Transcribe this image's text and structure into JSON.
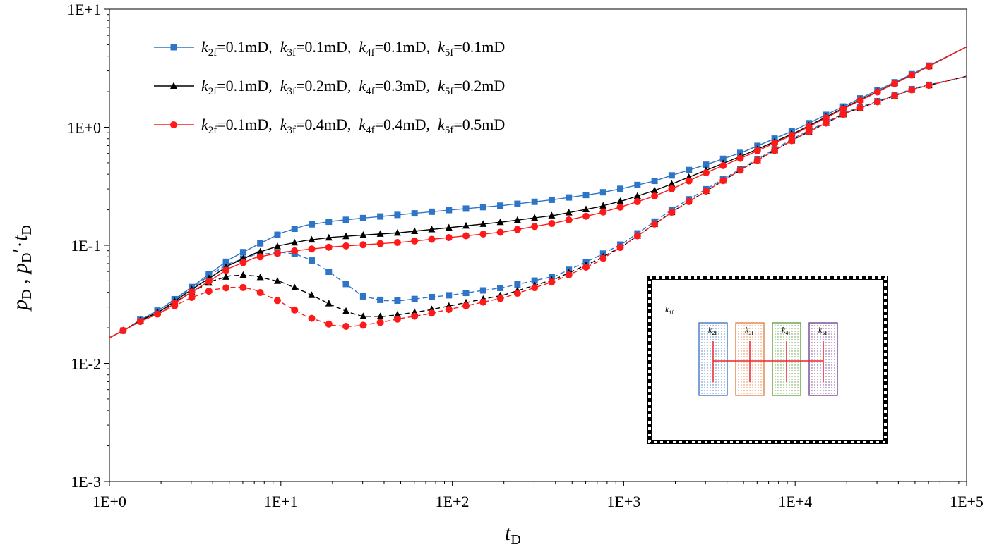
{
  "chart_data": {
    "type": "line",
    "x_scale": "log",
    "y_scale": "log",
    "xlim": [
      1,
      100000
    ],
    "ylim": [
      0.001,
      10
    ],
    "xlabel": {
      "main": "t",
      "sub": "D"
    },
    "ylabel": {
      "p": "p",
      "sub1": "D",
      "sep": " , ",
      "p2": "p",
      "sub2": "D",
      "prime": "′·",
      "t": "t",
      "sub3": "D"
    },
    "x_ticks": [
      {
        "value": 1,
        "label": "1E+0"
      },
      {
        "value": 10,
        "label": "1E+1"
      },
      {
        "value": 100,
        "label": "1E+2"
      },
      {
        "value": 1000,
        "label": "1E+3"
      },
      {
        "value": 10000,
        "label": "1E+4"
      },
      {
        "value": 100000,
        "label": "1E+5"
      }
    ],
    "y_ticks": [
      {
        "value": 0.001,
        "label": "1E-3"
      },
      {
        "value": 0.01,
        "label": "1E-2"
      },
      {
        "value": 0.1,
        "label": "1E-1"
      },
      {
        "value": 1,
        "label": "1E+0"
      },
      {
        "value": 10,
        "label": "1E+1"
      }
    ],
    "series": [
      {
        "name": "k2f=0.1mD, k3f=0.1mD, k4f=0.1mD, k5f=0.1mD",
        "color": "#2e75c7",
        "marker": "square",
        "legend_parts": [
          {
            "k": "k",
            "sub": "2f",
            "val": "=0.1mD,"
          },
          {
            "k": "k",
            "sub": "3f",
            "val": "=0.1mD,"
          },
          {
            "k": "k",
            "sub": "4f",
            "val": "=0.1mD,"
          },
          {
            "k": "k",
            "sub": "5f",
            "val": "=0.1mD"
          }
        ],
        "pressure": [
          [
            1,
            0.0165
          ],
          [
            1.25,
            0.0195
          ],
          [
            1.5,
            0.0232
          ],
          [
            2,
            0.029
          ],
          [
            3,
            0.044
          ],
          [
            4,
            0.06
          ],
          [
            5,
            0.076
          ],
          [
            7,
            0.098
          ],
          [
            10,
            0.127
          ],
          [
            14,
            0.148
          ],
          [
            20,
            0.16
          ],
          [
            30,
            0.17
          ],
          [
            50,
            0.182
          ],
          [
            100,
            0.2
          ],
          [
            200,
            0.218
          ],
          [
            400,
            0.245
          ],
          [
            700,
            0.275
          ],
          [
            1000,
            0.305
          ],
          [
            1500,
            0.35
          ],
          [
            2000,
            0.4
          ],
          [
            3000,
            0.48
          ],
          [
            5000,
            0.62
          ],
          [
            10000,
            0.95
          ],
          [
            20000,
            1.55
          ],
          [
            50000,
            2.9
          ],
          [
            100000,
            4.8
          ]
        ],
        "derivative": [
          [
            1,
            0.0165
          ],
          [
            1.25,
            0.0195
          ],
          [
            1.5,
            0.0232
          ],
          [
            2,
            0.029
          ],
          [
            3,
            0.043
          ],
          [
            4,
            0.058
          ],
          [
            5,
            0.07
          ],
          [
            7,
            0.083
          ],
          [
            10,
            0.087
          ],
          [
            12,
            0.085
          ],
          [
            15,
            0.075
          ],
          [
            20,
            0.057
          ],
          [
            25,
            0.045
          ],
          [
            30,
            0.037
          ],
          [
            40,
            0.034
          ],
          [
            50,
            0.034
          ],
          [
            70,
            0.036
          ],
          [
            100,
            0.038
          ],
          [
            200,
            0.044
          ],
          [
            400,
            0.055
          ],
          [
            700,
            0.08
          ],
          [
            1000,
            0.105
          ],
          [
            2000,
            0.21
          ],
          [
            5000,
            0.46
          ],
          [
            10000,
            0.82
          ],
          [
            20000,
            1.35
          ],
          [
            50000,
            2.15
          ],
          [
            100000,
            2.7
          ]
        ]
      },
      {
        "name": "k2f=0.1mD, k3f=0.2mD, k4f=0.3mD, k5f=0.2mD",
        "color": "#000000",
        "marker": "triangle",
        "legend_parts": [
          {
            "k": "k",
            "sub": "2f",
            "val": "=0.1mD,"
          },
          {
            "k": "k",
            "sub": "3f",
            "val": "=0.2mD,"
          },
          {
            "k": "k",
            "sub": "4f",
            "val": "=0.3mD,"
          },
          {
            "k": "k",
            "sub": "5f",
            "val": "=0.2mD"
          }
        ],
        "pressure": [
          [
            1,
            0.0165
          ],
          [
            1.25,
            0.0195
          ],
          [
            1.5,
            0.0228
          ],
          [
            2,
            0.028
          ],
          [
            3,
            0.042
          ],
          [
            4,
            0.055
          ],
          [
            5,
            0.068
          ],
          [
            7,
            0.085
          ],
          [
            10,
            0.1
          ],
          [
            14,
            0.11
          ],
          [
            20,
            0.117
          ],
          [
            30,
            0.122
          ],
          [
            50,
            0.128
          ],
          [
            100,
            0.142
          ],
          [
            200,
            0.158
          ],
          [
            400,
            0.18
          ],
          [
            700,
            0.21
          ],
          [
            1000,
            0.24
          ],
          [
            1500,
            0.29
          ],
          [
            2000,
            0.34
          ],
          [
            3000,
            0.43
          ],
          [
            5000,
            0.58
          ],
          [
            10000,
            0.9
          ],
          [
            20000,
            1.5
          ],
          [
            50000,
            2.85
          ],
          [
            100000,
            4.8
          ]
        ],
        "derivative": [
          [
            1,
            0.0165
          ],
          [
            1.25,
            0.0195
          ],
          [
            1.5,
            0.0228
          ],
          [
            2,
            0.028
          ],
          [
            3,
            0.04
          ],
          [
            4,
            0.05
          ],
          [
            5,
            0.055
          ],
          [
            6,
            0.056
          ],
          [
            7,
            0.055
          ],
          [
            10,
            0.049
          ],
          [
            14,
            0.04
          ],
          [
            20,
            0.031
          ],
          [
            25,
            0.027
          ],
          [
            30,
            0.025
          ],
          [
            40,
            0.025
          ],
          [
            50,
            0.026
          ],
          [
            70,
            0.028
          ],
          [
            100,
            0.031
          ],
          [
            200,
            0.038
          ],
          [
            400,
            0.052
          ],
          [
            700,
            0.075
          ],
          [
            1000,
            0.1
          ],
          [
            2000,
            0.2
          ],
          [
            5000,
            0.45
          ],
          [
            10000,
            0.8
          ],
          [
            20000,
            1.33
          ],
          [
            50000,
            2.12
          ],
          [
            100000,
            2.7
          ]
        ]
      },
      {
        "name": "k2f=0.1mD, k3f=0.4mD, k4f=0.4mD, k5f=0.5mD",
        "color": "#ff1a1a",
        "marker": "circle",
        "legend_parts": [
          {
            "k": "k",
            "sub": "2f",
            "val": "=0.1mD,"
          },
          {
            "k": "k",
            "sub": "3f",
            "val": "=0.4mD,"
          },
          {
            "k": "k",
            "sub": "4f",
            "val": "=0.4mD,"
          },
          {
            "k": "k",
            "sub": "5f",
            "val": "=0.5mD"
          }
        ],
        "pressure": [
          [
            1,
            0.0165
          ],
          [
            1.25,
            0.0195
          ],
          [
            1.5,
            0.0225
          ],
          [
            2,
            0.027
          ],
          [
            3,
            0.04
          ],
          [
            4,
            0.052
          ],
          [
            5,
            0.064
          ],
          [
            7,
            0.078
          ],
          [
            10,
            0.087
          ],
          [
            14,
            0.092
          ],
          [
            20,
            0.097
          ],
          [
            30,
            0.101
          ],
          [
            50,
            0.106
          ],
          [
            100,
            0.117
          ],
          [
            200,
            0.13
          ],
          [
            400,
            0.155
          ],
          [
            700,
            0.185
          ],
          [
            1000,
            0.215
          ],
          [
            1500,
            0.26
          ],
          [
            2000,
            0.31
          ],
          [
            3000,
            0.41
          ],
          [
            5000,
            0.56
          ],
          [
            10000,
            0.88
          ],
          [
            20000,
            1.48
          ],
          [
            50000,
            2.85
          ],
          [
            100000,
            4.8
          ]
        ],
        "derivative": [
          [
            1,
            0.0165
          ],
          [
            1.25,
            0.0195
          ],
          [
            1.5,
            0.0225
          ],
          [
            2,
            0.027
          ],
          [
            3,
            0.036
          ],
          [
            4,
            0.042
          ],
          [
            5,
            0.044
          ],
          [
            6,
            0.044
          ],
          [
            7,
            0.042
          ],
          [
            10,
            0.033
          ],
          [
            14,
            0.025
          ],
          [
            20,
            0.021
          ],
          [
            25,
            0.0205
          ],
          [
            30,
            0.021
          ],
          [
            40,
            0.0225
          ],
          [
            50,
            0.024
          ],
          [
            70,
            0.026
          ],
          [
            100,
            0.029
          ],
          [
            200,
            0.036
          ],
          [
            400,
            0.05
          ],
          [
            700,
            0.072
          ],
          [
            1000,
            0.1
          ],
          [
            2000,
            0.2
          ],
          [
            5000,
            0.45
          ],
          [
            10000,
            0.8
          ],
          [
            20000,
            1.33
          ],
          [
            50000,
            2.12
          ],
          [
            100000,
            2.7
          ]
        ]
      }
    ],
    "inset": {
      "matrix_label": {
        "k": "k",
        "sub": "1f"
      },
      "regions": [
        {
          "k": "k",
          "sub": "2f",
          "color": "#3a6fc0"
        },
        {
          "k": "k",
          "sub": "3f",
          "color": "#e07a3a"
        },
        {
          "k": "k",
          "sub": "4f",
          "color": "#5e9a3a"
        },
        {
          "k": "k",
          "sub": "5f",
          "color": "#6a3a8a"
        }
      ]
    }
  }
}
